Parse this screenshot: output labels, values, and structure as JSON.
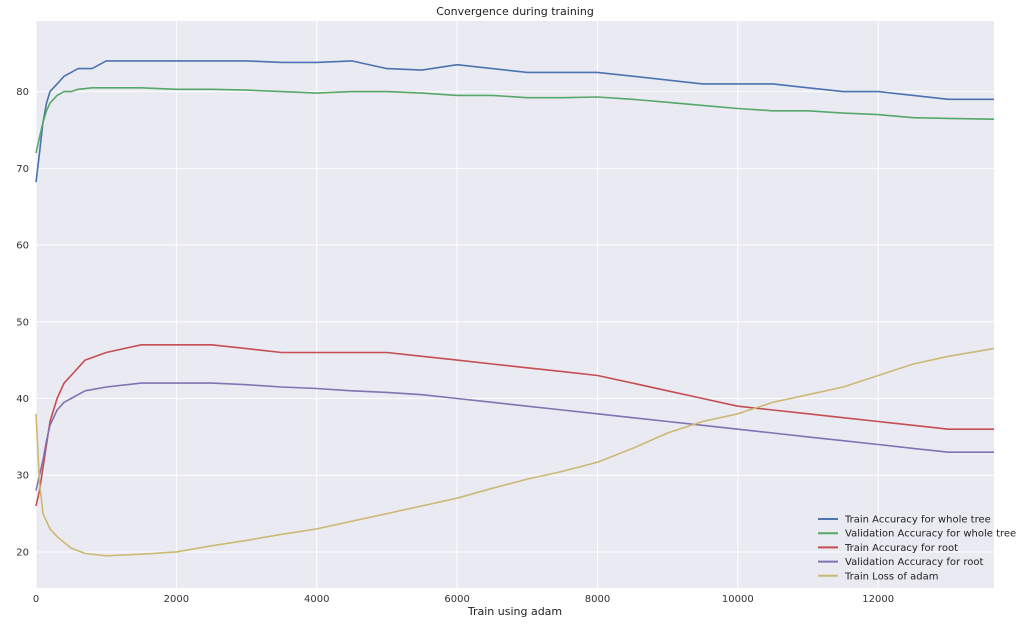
{
  "chart_data": {
    "type": "line",
    "title": "Convergence during training",
    "xlabel": "Train using adam",
    "ylabel": "",
    "xlim": [
      0,
      13650
    ],
    "ylim": [
      15.3,
      89.2
    ],
    "xticks": [
      0,
      2000,
      4000,
      6000,
      8000,
      10000,
      12000
    ],
    "yticks": [
      20,
      30,
      40,
      50,
      60,
      70,
      80
    ],
    "grid": true,
    "legend": "bottom-right",
    "colors": {
      "plot_bg": "#eaeaf2",
      "grid": "#ffffff"
    },
    "series": [
      {
        "name": "Train Accuracy for whole tree",
        "color": "#4c72b0",
        "x": [
          0,
          50,
          100,
          150,
          200,
          300,
          400,
          500,
          600,
          800,
          1000,
          1200,
          1500,
          1800,
          2000,
          2500,
          3000,
          3500,
          4000,
          4500,
          5000,
          5500,
          6000,
          6500,
          7000,
          7500,
          8000,
          8500,
          9000,
          9500,
          10000,
          10500,
          11000,
          11500,
          12000,
          12500,
          13000,
          13650
        ],
        "y": [
          68.2,
          72,
          76,
          78.5,
          80,
          81,
          82,
          82.5,
          83,
          83,
          84,
          84,
          84,
          84,
          84,
          84,
          84,
          83.8,
          83.8,
          84,
          83,
          82.8,
          83.5,
          83,
          82.5,
          82.5,
          82.5,
          82,
          81.5,
          81,
          81,
          81,
          80.5,
          80,
          80,
          79.5,
          79,
          79
        ]
      },
      {
        "name": "Validation Accuracy for whole tree",
        "color": "#55a868",
        "x": [
          0,
          50,
          100,
          150,
          200,
          300,
          400,
          500,
          600,
          800,
          1000,
          1500,
          2000,
          2500,
          3000,
          3500,
          4000,
          4500,
          5000,
          5500,
          6000,
          6500,
          7000,
          7500,
          8000,
          8500,
          9000,
          9500,
          10000,
          10500,
          11000,
          11500,
          12000,
          12500,
          13000,
          13650
        ],
        "y": [
          72,
          74,
          76,
          77.5,
          78.5,
          79.5,
          80,
          80,
          80.3,
          80.5,
          80.5,
          80.5,
          80.3,
          80.3,
          80.2,
          80,
          79.8,
          80,
          80,
          79.8,
          79.5,
          79.5,
          79.2,
          79.2,
          79.3,
          79,
          78.6,
          78.2,
          77.8,
          77.5,
          77.5,
          77.2,
          77,
          76.6,
          76.5,
          76.4
        ]
      },
      {
        "name": "Train Accuracy for root",
        "color": "#c44e52",
        "x": [
          0,
          50,
          100,
          150,
          200,
          300,
          400,
          500,
          700,
          1000,
          1500,
          2000,
          2500,
          3000,
          3500,
          4000,
          4500,
          5000,
          5500,
          6000,
          6500,
          7000,
          7500,
          8000,
          8500,
          9000,
          9500,
          10000,
          10500,
          11000,
          11500,
          12000,
          12500,
          13000,
          13650
        ],
        "y": [
          26,
          28,
          31,
          34,
          37,
          40,
          42,
          43,
          45,
          46,
          47,
          47,
          47,
          46.5,
          46,
          46,
          46,
          46,
          45.5,
          45,
          44.5,
          44,
          43.5,
          43,
          42,
          41,
          40,
          39,
          38.5,
          38,
          37.5,
          37,
          36.5,
          36,
          36
        ]
      },
      {
        "name": "Validation Accuracy for root",
        "color": "#8172b2",
        "x": [
          0,
          50,
          100,
          150,
          200,
          300,
          400,
          500,
          700,
          1000,
          1500,
          2000,
          2500,
          3000,
          3500,
          4000,
          4500,
          5000,
          5500,
          6000,
          6500,
          7000,
          7500,
          8000,
          8500,
          9000,
          9500,
          10000,
          10500,
          11000,
          11500,
          12000,
          12500,
          13000,
          13650
        ],
        "y": [
          28,
          30,
          32,
          34.5,
          36.5,
          38.5,
          39.5,
          40,
          41,
          41.5,
          42,
          42,
          42,
          41.8,
          41.5,
          41.3,
          41,
          40.8,
          40.5,
          40,
          39.5,
          39,
          38.5,
          38,
          37.5,
          37,
          36.5,
          36,
          35.5,
          35,
          34.5,
          34,
          33.5,
          33,
          33
        ]
      },
      {
        "name": "Train Loss of adam",
        "color": "#ccb974",
        "x": [
          0,
          50,
          100,
          200,
          300,
          500,
          700,
          1000,
          1500,
          2000,
          2500,
          3000,
          3500,
          4000,
          4500,
          5000,
          5500,
          6000,
          6500,
          7000,
          7500,
          8000,
          8500,
          9000,
          9500,
          10000,
          10500,
          11000,
          11500,
          12000,
          12500,
          13000,
          13650
        ],
        "y": [
          38,
          29,
          25,
          23,
          22,
          20.5,
          19.8,
          19.5,
          19.7,
          20,
          20.8,
          21.5,
          22.3,
          23,
          24,
          25,
          26,
          27,
          28.3,
          29.5,
          30.5,
          31.7,
          33.5,
          35.5,
          37,
          38,
          39.5,
          40.5,
          41.5,
          43,
          44.5,
          45.5,
          46.5
        ]
      }
    ]
  }
}
